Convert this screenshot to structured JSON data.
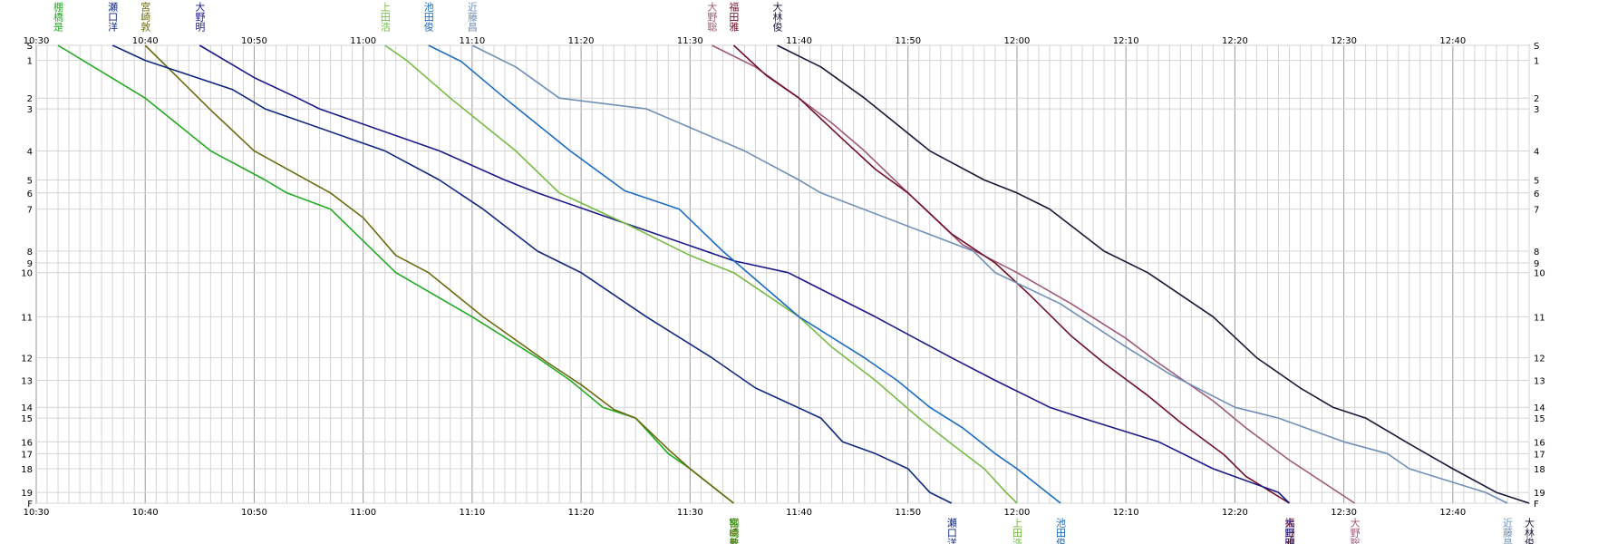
{
  "chart_data": {
    "type": "line",
    "title": "",
    "xlabel": "",
    "ylabel": "",
    "x_ticks": [
      "10:30",
      "10:40",
      "10:50",
      "11:00",
      "11:10",
      "11:20",
      "11:30",
      "11:40",
      "11:50",
      "12:00",
      "12:10",
      "12:20",
      "12:30",
      "12:40"
    ],
    "xlim": [
      "10:30",
      "12:47"
    ],
    "y_ticks": [
      "S",
      "1",
      "2",
      "3",
      "4",
      "5",
      "6",
      "7",
      "8",
      "9",
      "10",
      "11",
      "12",
      "13",
      "14",
      "15",
      "16",
      "17",
      "18",
      "19",
      "F"
    ],
    "y_tick_positions": [
      0,
      1.4,
      4.9,
      5.9,
      9.8,
      12.5,
      13.7,
      15.2,
      19.1,
      20.2,
      21.1,
      25.2,
      29.0,
      31.1,
      33.6,
      34.6,
      36.8,
      37.9,
      39.3,
      41.5,
      42.5
    ],
    "ylim": [
      0,
      42.5
    ],
    "grid": true,
    "series": [
      {
        "name": "棚橋是",
        "color": "#22aa22",
        "points": [
          [
            "10:32",
            0
          ],
          [
            "10:40",
            4.9
          ],
          [
            "10:46",
            9.8
          ],
          [
            "10:51",
            12.5
          ],
          [
            "10:53",
            13.7
          ],
          [
            "10:57",
            15.2
          ],
          [
            "11:03",
            21.1
          ],
          [
            "11:10",
            25.2
          ],
          [
            "11:16",
            29.0
          ],
          [
            "11:19",
            31.1
          ],
          [
            "11:22",
            33.6
          ],
          [
            "11:25",
            34.6
          ],
          [
            "11:28",
            37.9
          ],
          [
            "11:30",
            39.3
          ],
          [
            "11:34",
            42.5
          ]
        ]
      },
      {
        "name": "宮崎敦",
        "color": "#6b6b10",
        "points": [
          [
            "10:40",
            0
          ],
          [
            "10:43",
            3.0
          ],
          [
            "10:46",
            6.0
          ],
          [
            "10:50",
            9.8
          ],
          [
            "10:57",
            13.7
          ],
          [
            "11:00",
            16.0
          ],
          [
            "11:03",
            19.5
          ],
          [
            "11:06",
            21.1
          ],
          [
            "11:11",
            25.2
          ],
          [
            "11:17",
            29.5
          ],
          [
            "11:20",
            31.5
          ],
          [
            "11:23",
            33.8
          ],
          [
            "11:25",
            34.6
          ],
          [
            "11:28",
            37.5
          ],
          [
            "11:30",
            39.3
          ],
          [
            "11:34",
            42.5
          ]
        ]
      },
      {
        "name": "大野聡",
        "color": "#a05878",
        "points": [
          [
            "11:32",
            0
          ],
          [
            "11:36",
            2.0
          ],
          [
            "11:40",
            4.9
          ],
          [
            "11:43",
            7.2
          ],
          [
            "11:46",
            9.8
          ],
          [
            "11:50",
            13.7
          ],
          [
            "11:55",
            18.5
          ],
          [
            "12:00",
            21.1
          ],
          [
            "12:05",
            24.0
          ],
          [
            "12:10",
            27.2
          ],
          [
            "12:13",
            29.5
          ],
          [
            "12:18",
            33.0
          ],
          [
            "12:21",
            35.5
          ],
          [
            "12:25",
            38.5
          ],
          [
            "12:31",
            42.5
          ]
        ]
      },
      {
        "name": "福田雅",
        "color": "#701028",
        "points": [
          [
            "11:34",
            0
          ],
          [
            "11:37",
            2.8
          ],
          [
            "11:40",
            4.9
          ],
          [
            "11:44",
            8.7
          ],
          [
            "11:47",
            11.5
          ],
          [
            "11:50",
            13.7
          ],
          [
            "11:54",
            17.5
          ],
          [
            "11:58",
            20.2
          ],
          [
            "12:01",
            23.0
          ],
          [
            "12:05",
            27.0
          ],
          [
            "12:08",
            29.5
          ],
          [
            "12:12",
            32.5
          ],
          [
            "12:15",
            35.0
          ],
          [
            "12:19",
            38.0
          ],
          [
            "12:21",
            40.0
          ],
          [
            "12:25",
            42.5
          ]
        ]
      },
      {
        "name": "瀬口洋",
        "color": "#102880",
        "points": [
          [
            "10:37",
            0
          ],
          [
            "10:40",
            1.4
          ],
          [
            "10:48",
            4.1
          ],
          [
            "10:51",
            5.9
          ],
          [
            "11:02",
            9.8
          ],
          [
            "11:07",
            12.5
          ],
          [
            "11:11",
            15.2
          ],
          [
            "11:16",
            19.1
          ],
          [
            "11:20",
            21.1
          ],
          [
            "11:26",
            25.2
          ],
          [
            "11:32",
            29.0
          ],
          [
            "11:36",
            31.8
          ],
          [
            "11:42",
            34.6
          ],
          [
            "11:44",
            36.8
          ],
          [
            "11:47",
            37.9
          ],
          [
            "11:50",
            39.3
          ],
          [
            "11:52",
            41.5
          ],
          [
            "11:54",
            42.5
          ]
        ]
      },
      {
        "name": "大野明",
        "color": "#1a1a88",
        "points": [
          [
            "10:45",
            0
          ],
          [
            "10:50",
            3.0
          ],
          [
            "10:54",
            4.9
          ],
          [
            "10:56",
            5.9
          ],
          [
            "11:07",
            9.8
          ],
          [
            "11:13",
            12.5
          ],
          [
            "11:16",
            13.7
          ],
          [
            "11:24",
            16.5
          ],
          [
            "11:34",
            20.0
          ],
          [
            "11:39",
            21.1
          ],
          [
            "11:47",
            25.2
          ],
          [
            "11:54",
            29.0
          ],
          [
            "11:58",
            31.1
          ],
          [
            "12:03",
            33.6
          ],
          [
            "12:06",
            34.6
          ],
          [
            "12:13",
            36.8
          ],
          [
            "12:18",
            39.3
          ],
          [
            "12:24",
            41.5
          ],
          [
            "12:25",
            42.5
          ]
        ]
      },
      {
        "name": "上田浩",
        "color": "#77bb44",
        "points": [
          [
            "11:02",
            0
          ],
          [
            "11:04",
            1.4
          ],
          [
            "11:08",
            4.9
          ],
          [
            "11:14",
            9.8
          ],
          [
            "11:18",
            13.7
          ],
          [
            "11:24",
            16.5
          ],
          [
            "11:30",
            19.5
          ],
          [
            "11:34",
            21.1
          ],
          [
            "11:40",
            25.2
          ],
          [
            "11:43",
            28.0
          ],
          [
            "11:47",
            31.1
          ],
          [
            "11:51",
            34.6
          ],
          [
            "11:54",
            37.0
          ],
          [
            "11:57",
            39.3
          ],
          [
            "11:59",
            41.5
          ],
          [
            "12:00",
            42.5
          ]
        ]
      },
      {
        "name": "池田俊",
        "color": "#1a6cc0",
        "points": [
          [
            "11:06",
            0
          ],
          [
            "11:09",
            1.5
          ],
          [
            "11:13",
            4.9
          ],
          [
            "11:19",
            9.8
          ],
          [
            "11:24",
            13.5
          ],
          [
            "11:29",
            15.2
          ],
          [
            "11:33",
            19.1
          ],
          [
            "11:40",
            25.2
          ],
          [
            "11:46",
            29.0
          ],
          [
            "11:49",
            31.1
          ],
          [
            "11:52",
            33.6
          ],
          [
            "11:55",
            35.5
          ],
          [
            "11:58",
            37.9
          ],
          [
            "12:00",
            39.3
          ],
          [
            "12:04",
            42.5
          ]
        ]
      },
      {
        "name": "近藤昌",
        "color": "#7090b8",
        "points": [
          [
            "11:10",
            0
          ],
          [
            "11:14",
            2.0
          ],
          [
            "11:18",
            4.9
          ],
          [
            "11:26",
            5.9
          ],
          [
            "11:35",
            9.8
          ],
          [
            "11:40",
            12.5
          ],
          [
            "11:42",
            13.7
          ],
          [
            "11:56",
            19.1
          ],
          [
            "11:58",
            21.1
          ],
          [
            "12:04",
            24.0
          ],
          [
            "12:10",
            28.0
          ],
          [
            "12:14",
            30.5
          ],
          [
            "12:20",
            33.6
          ],
          [
            "12:24",
            34.6
          ],
          [
            "12:30",
            36.8
          ],
          [
            "12:34",
            37.9
          ],
          [
            "12:36",
            39.3
          ],
          [
            "12:43",
            41.5
          ],
          [
            "12:45",
            42.5
          ]
        ]
      },
      {
        "name": "大林俊",
        "color": "#181838",
        "points": [
          [
            "11:38",
            0
          ],
          [
            "11:42",
            2.0
          ],
          [
            "11:46",
            4.9
          ],
          [
            "11:52",
            9.8
          ],
          [
            "11:57",
            12.5
          ],
          [
            "12:00",
            13.7
          ],
          [
            "12:03",
            15.2
          ],
          [
            "12:08",
            19.1
          ],
          [
            "12:12",
            21.1
          ],
          [
            "12:18",
            25.2
          ],
          [
            "12:22",
            29.0
          ],
          [
            "12:26",
            31.8
          ],
          [
            "12:29",
            33.6
          ],
          [
            "12:32",
            34.6
          ],
          [
            "12:36",
            37.0
          ],
          [
            "12:40",
            39.3
          ],
          [
            "12:44",
            41.5
          ],
          [
            "12:47",
            42.5
          ]
        ]
      }
    ]
  }
}
